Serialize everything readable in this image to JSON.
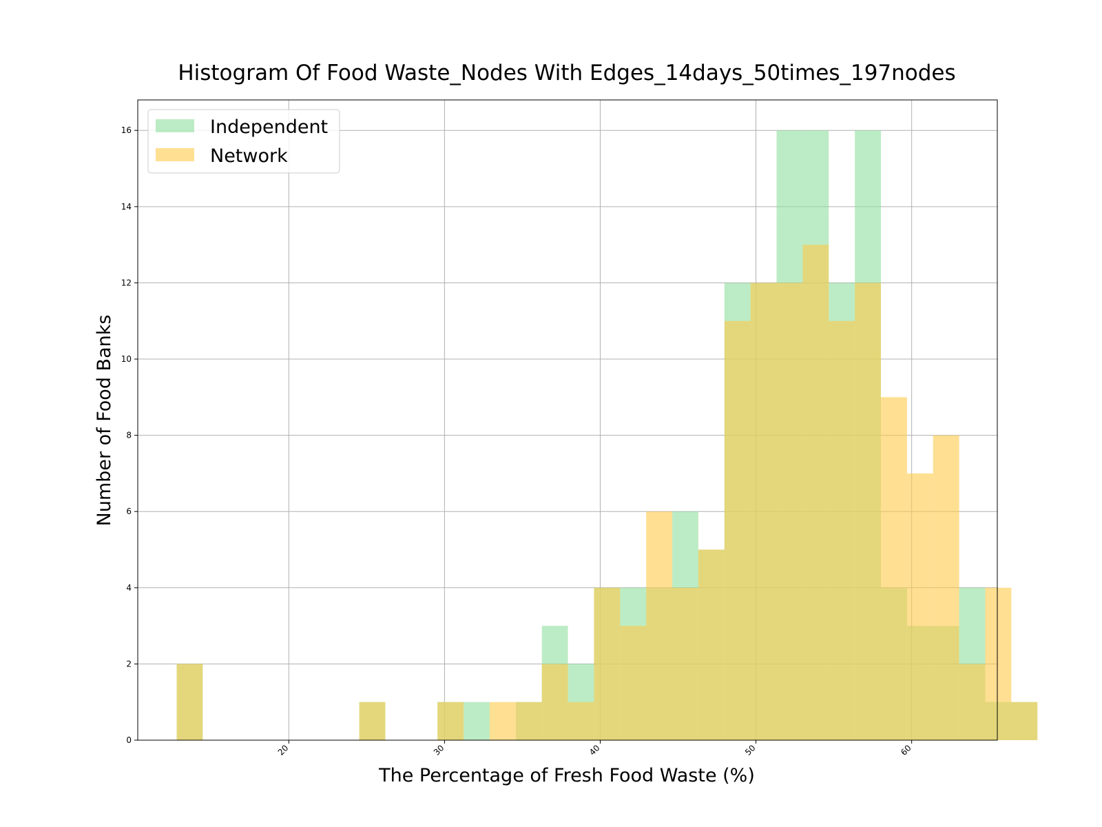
{
  "chart_data": {
    "type": "bar",
    "title": "Histogram Of Food Waste_Nodes With Edges_14days_50times_197nodes",
    "xlabel": "The Percentage of Fresh Food Waste (%)",
    "ylabel": "Number of Food Banks",
    "xlim": [
      10.3,
      65.5
    ],
    "ylim": [
      0,
      16.8
    ],
    "x_ticks": [
      20,
      30,
      40,
      50,
      60
    ],
    "y_ticks": [
      0,
      2,
      4,
      6,
      8,
      10,
      12,
      14,
      16
    ],
    "grid": true,
    "legend_position": "top-left",
    "bin_start": 12.8,
    "bin_width": 1.675,
    "series": [
      {
        "name": "Independent",
        "color": "#8fdf9f",
        "values": [
          2,
          0,
          0,
          0,
          0,
          0,
          0,
          1,
          0,
          0,
          1,
          1,
          0,
          1,
          3,
          2,
          4,
          4,
          4,
          6,
          5,
          12,
          12,
          16,
          16,
          12,
          16,
          4,
          3,
          3,
          4,
          1,
          1
        ]
      },
      {
        "name": "Network",
        "color": "#ffc94a",
        "values": [
          2,
          0,
          0,
          0,
          0,
          0,
          0,
          1,
          0,
          0,
          1,
          0,
          1,
          1,
          2,
          1,
          4,
          3,
          6,
          4,
          5,
          11,
          12,
          12,
          13,
          11,
          12,
          9,
          7,
          8,
          2,
          4,
          1
        ]
      }
    ]
  }
}
